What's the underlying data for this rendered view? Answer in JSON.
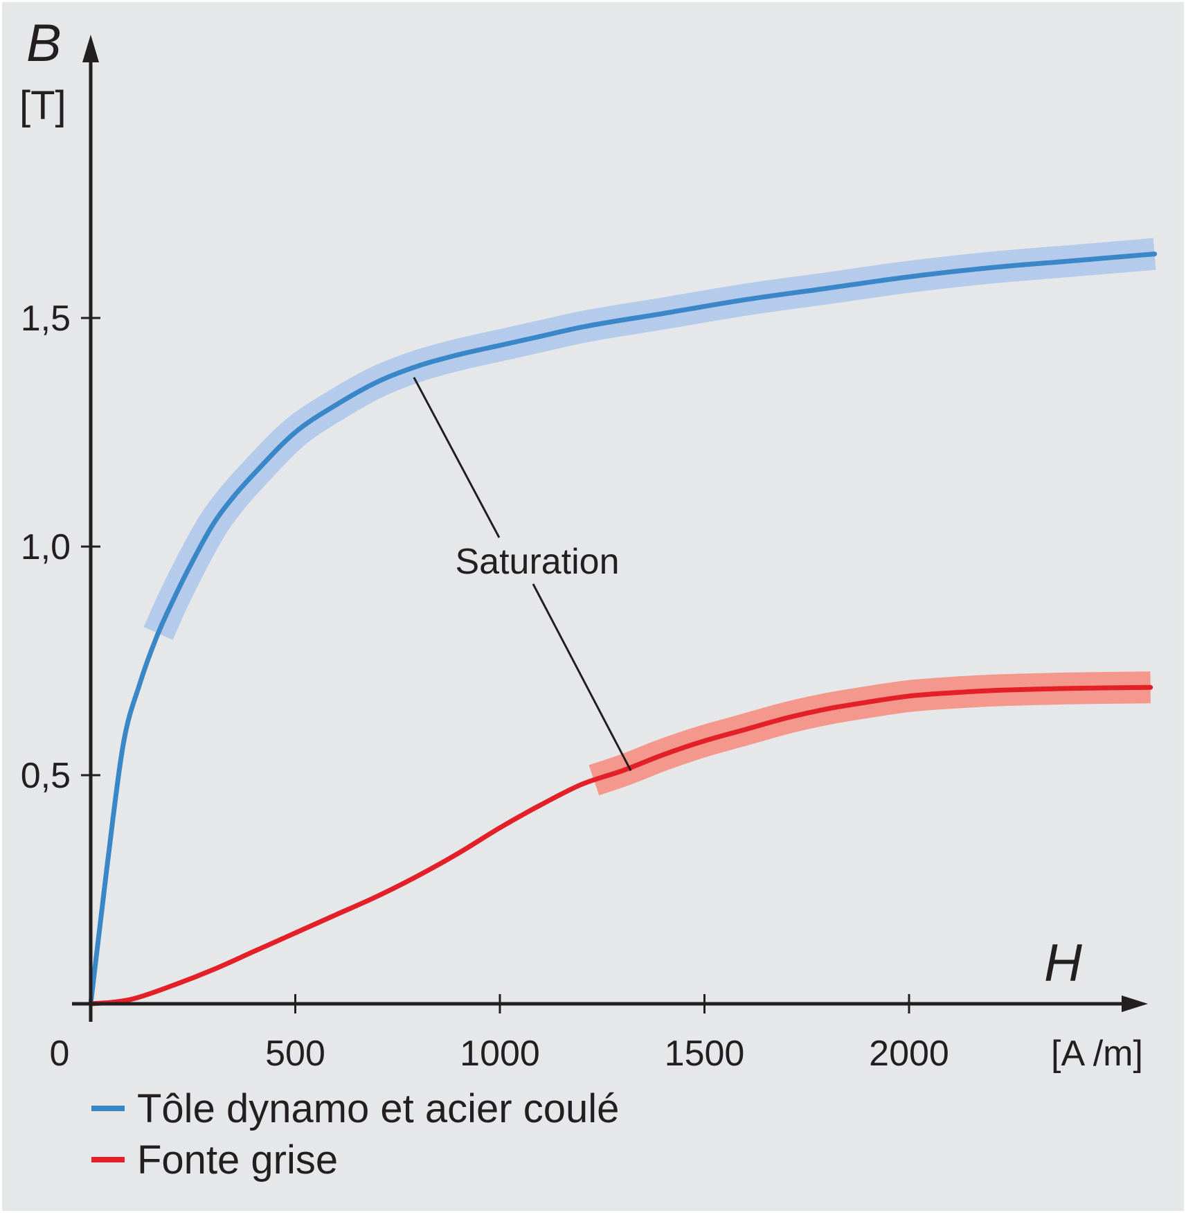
{
  "chart_data": {
    "type": "line",
    "ylabel": "B",
    "yunit": "[T]",
    "xlabel": "H",
    "xunit": "[A /m]",
    "xlim": [
      0,
      2550
    ],
    "ylim": [
      0,
      2.05
    ],
    "x_ticks": [
      0,
      500,
      1000,
      1500,
      2000
    ],
    "x_tick_labels": [
      "0",
      "500",
      "1000",
      "1500",
      "2000"
    ],
    "y_ticks": [
      0.5,
      1.0,
      1.5
    ],
    "y_tick_labels": [
      "0,5",
      "1,0",
      "1,5"
    ],
    "grid": false,
    "legend_position": "bottom-left",
    "background_color": "#e6e7e9",
    "series": [
      {
        "name": "Tôle dynamo et acier coulé",
        "color": "#3a87c8",
        "band_color": "#b5cbeb",
        "saturation_range": [
          165,
          2600
        ],
        "points": [
          [
            0,
            0
          ],
          [
            40,
            0.3
          ],
          [
            80,
            0.57
          ],
          [
            120,
            0.7
          ],
          [
            160,
            0.8
          ],
          [
            200,
            0.88
          ],
          [
            250,
            0.97
          ],
          [
            300,
            1.05
          ],
          [
            350,
            1.11
          ],
          [
            400,
            1.16
          ],
          [
            500,
            1.25
          ],
          [
            600,
            1.31
          ],
          [
            700,
            1.36
          ],
          [
            800,
            1.395
          ],
          [
            900,
            1.42
          ],
          [
            1000,
            1.44
          ],
          [
            1100,
            1.46
          ],
          [
            1200,
            1.48
          ],
          [
            1400,
            1.51
          ],
          [
            1600,
            1.54
          ],
          [
            1800,
            1.565
          ],
          [
            2000,
            1.59
          ],
          [
            2200,
            1.61
          ],
          [
            2400,
            1.625
          ],
          [
            2600,
            1.64
          ]
        ]
      },
      {
        "name": "Fonte grise",
        "color": "#e32027",
        "band_color": "#f4988e",
        "saturation_range": [
          1230,
          2590
        ],
        "points": [
          [
            0,
            0
          ],
          [
            50,
            0.003
          ],
          [
            100,
            0.01
          ],
          [
            200,
            0.04
          ],
          [
            300,
            0.075
          ],
          [
            400,
            0.115
          ],
          [
            500,
            0.155
          ],
          [
            600,
            0.195
          ],
          [
            700,
            0.235
          ],
          [
            800,
            0.28
          ],
          [
            900,
            0.33
          ],
          [
            1000,
            0.385
          ],
          [
            1100,
            0.435
          ],
          [
            1200,
            0.48
          ],
          [
            1300,
            0.51
          ],
          [
            1400,
            0.545
          ],
          [
            1500,
            0.575
          ],
          [
            1600,
            0.6
          ],
          [
            1700,
            0.625
          ],
          [
            1800,
            0.645
          ],
          [
            1900,
            0.66
          ],
          [
            2000,
            0.673
          ],
          [
            2100,
            0.68
          ],
          [
            2200,
            0.685
          ],
          [
            2400,
            0.69
          ],
          [
            2590,
            0.692
          ]
        ]
      }
    ],
    "annotation": {
      "text": "Saturation",
      "targets": [
        [
          790,
          1.37
        ],
        [
          1320,
          0.51
        ]
      ]
    }
  }
}
